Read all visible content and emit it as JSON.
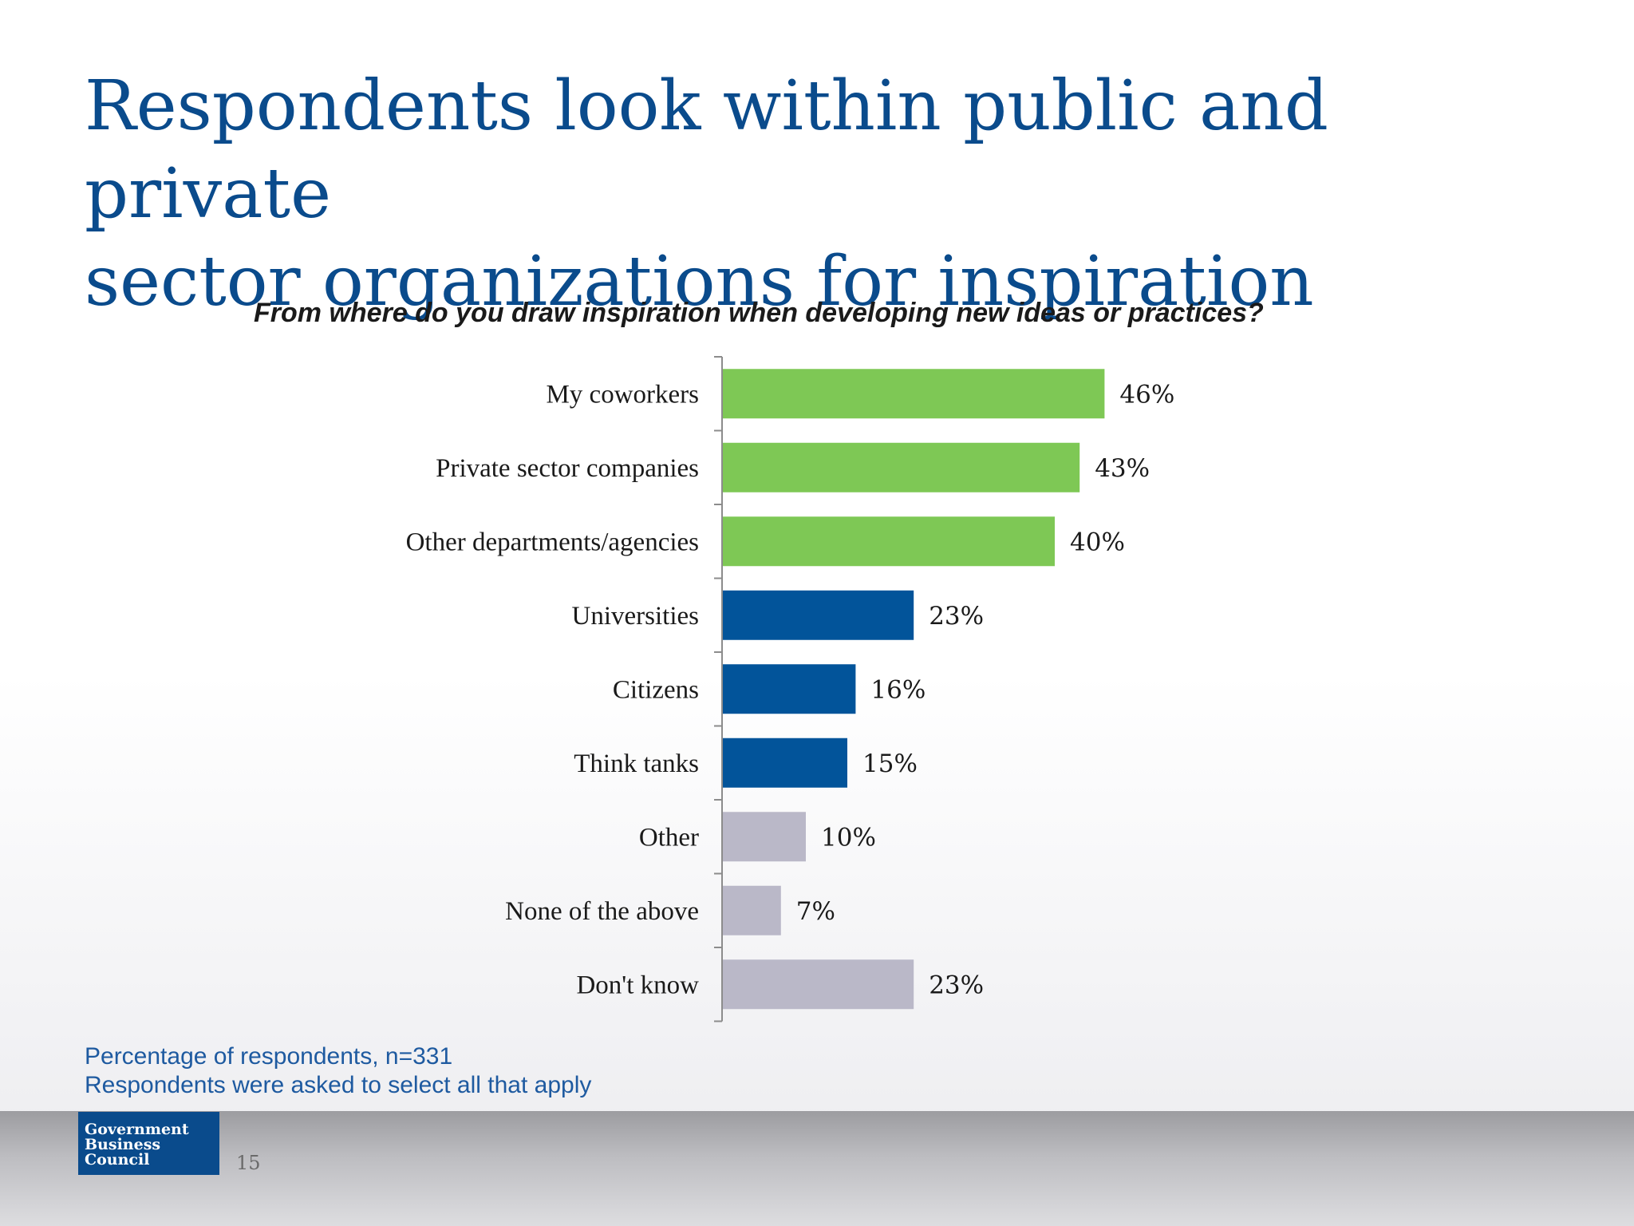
{
  "title": {
    "line1": "Respondents look within public and private",
    "line2": "sector organizations for inspiration"
  },
  "chart_data": {
    "type": "bar",
    "orientation": "horizontal",
    "title": "From where do you draw inspiration when developing new ideas or practices?",
    "xlabel": "",
    "ylabel": "",
    "grid": false,
    "xlim": [
      0,
      100
    ],
    "categories": [
      "My coworkers",
      "Private sector companies",
      "Other departments/agencies",
      "Universities",
      "Citizens",
      "Think tanks",
      "Other",
      "None of the above",
      "Don't know"
    ],
    "values": [
      46,
      43,
      40,
      23,
      16,
      15,
      10,
      7,
      23
    ],
    "value_labels": [
      "46%",
      "43%",
      "40%",
      "23%",
      "16%",
      "15%",
      "10%",
      "7%",
      "23%"
    ],
    "bar_colors": [
      "#7ec855",
      "#7ec855",
      "#7ec855",
      "#02549a",
      "#02549a",
      "#02549a",
      "#bab8c8",
      "#bab8c8",
      "#bab8c8"
    ]
  },
  "footnotes": {
    "line1": "Percentage of respondents, n=331",
    "line2": "Respondents were asked to select all that apply"
  },
  "footer": {
    "logo_line1": "Government",
    "logo_line2": "Business",
    "logo_line3": "Council",
    "page_number": "15"
  },
  "colors": {
    "title": "#0a4b8c",
    "footnote": "#1e5aa0",
    "logo_bg": "#0a4b8c"
  }
}
